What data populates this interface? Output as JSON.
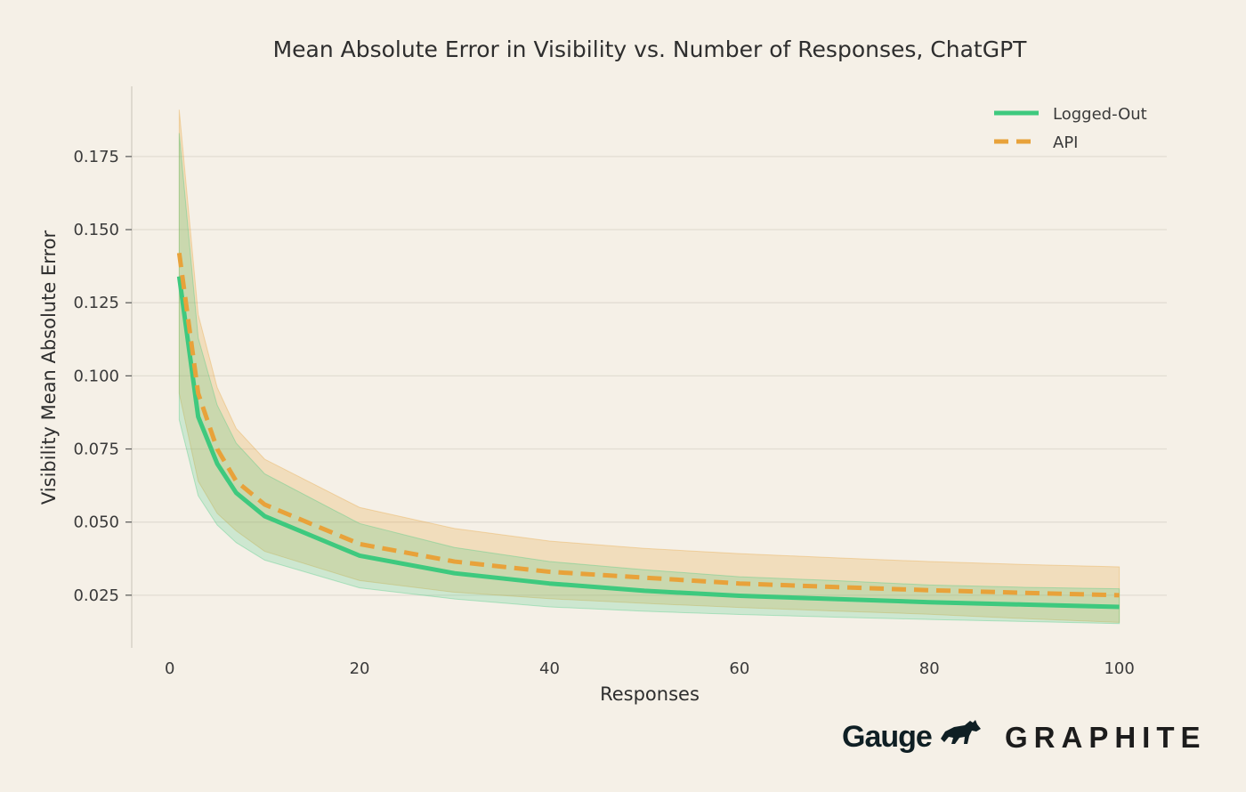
{
  "chart_data": {
    "type": "line",
    "title": "Mean Absolute Error in Visibility vs. Number of Responses, ChatGPT",
    "xlabel": "Responses",
    "ylabel": "Visibility Mean Absolute Error",
    "xlim": [
      -4,
      105
    ],
    "ylim": [
      0.007,
      0.199
    ],
    "xticks": [
      0,
      20,
      40,
      60,
      80,
      100
    ],
    "xtick_labels": [
      "0",
      "20",
      "40",
      "60",
      "80",
      "100"
    ],
    "yticks": [
      0.025,
      0.05,
      0.075,
      0.1,
      0.125,
      0.15,
      0.175
    ],
    "ytick_labels": [
      "0.025",
      "0.050",
      "0.075",
      "0.100",
      "0.125",
      "0.150",
      "0.175"
    ],
    "grid": "horizontal",
    "legend_position": "top-right",
    "x": [
      1,
      3,
      5,
      7,
      10,
      20,
      30,
      40,
      50,
      60,
      70,
      80,
      90,
      100
    ],
    "series": [
      {
        "name": "Logged-Out",
        "color": "#3ec97e",
        "style": "solid",
        "values": [
          0.134,
          0.086,
          0.07,
          0.06,
          0.052,
          0.0385,
          0.0325,
          0.029,
          0.0265,
          0.0248,
          0.0237,
          0.0226,
          0.0218,
          0.021
        ],
        "band_low": [
          0.085,
          0.059,
          0.049,
          0.043,
          0.037,
          0.0275,
          0.0237,
          0.021,
          0.0195,
          0.0184,
          0.0175,
          0.0167,
          0.016,
          0.0153
        ],
        "band_high": [
          0.183,
          0.113,
          0.09,
          0.077,
          0.0665,
          0.0495,
          0.0413,
          0.0365,
          0.0337,
          0.0313,
          0.03,
          0.0285,
          0.0277,
          0.0272
        ]
      },
      {
        "name": "API",
        "color": "#e8a23a",
        "style": "dashed",
        "values": [
          0.142,
          0.094,
          0.075,
          0.064,
          0.056,
          0.0425,
          0.0365,
          0.033,
          0.031,
          0.029,
          0.0278,
          0.0267,
          0.0258,
          0.025
        ],
        "band_low": [
          0.094,
          0.064,
          0.053,
          0.047,
          0.04,
          0.03,
          0.026,
          0.0238,
          0.0222,
          0.0208,
          0.0196,
          0.0185,
          0.017,
          0.0157
        ],
        "band_high": [
          0.191,
          0.121,
          0.096,
          0.082,
          0.0715,
          0.055,
          0.0478,
          0.0435,
          0.041,
          0.0392,
          0.0378,
          0.0365,
          0.0355,
          0.0347
        ]
      }
    ]
  },
  "logos": {
    "gauge": "Gauge",
    "graphite": "GRAPHITE"
  },
  "colors": {
    "background": "#f5f0e7",
    "grid": "#e2ddd3",
    "axis": "#d6d1c7"
  }
}
